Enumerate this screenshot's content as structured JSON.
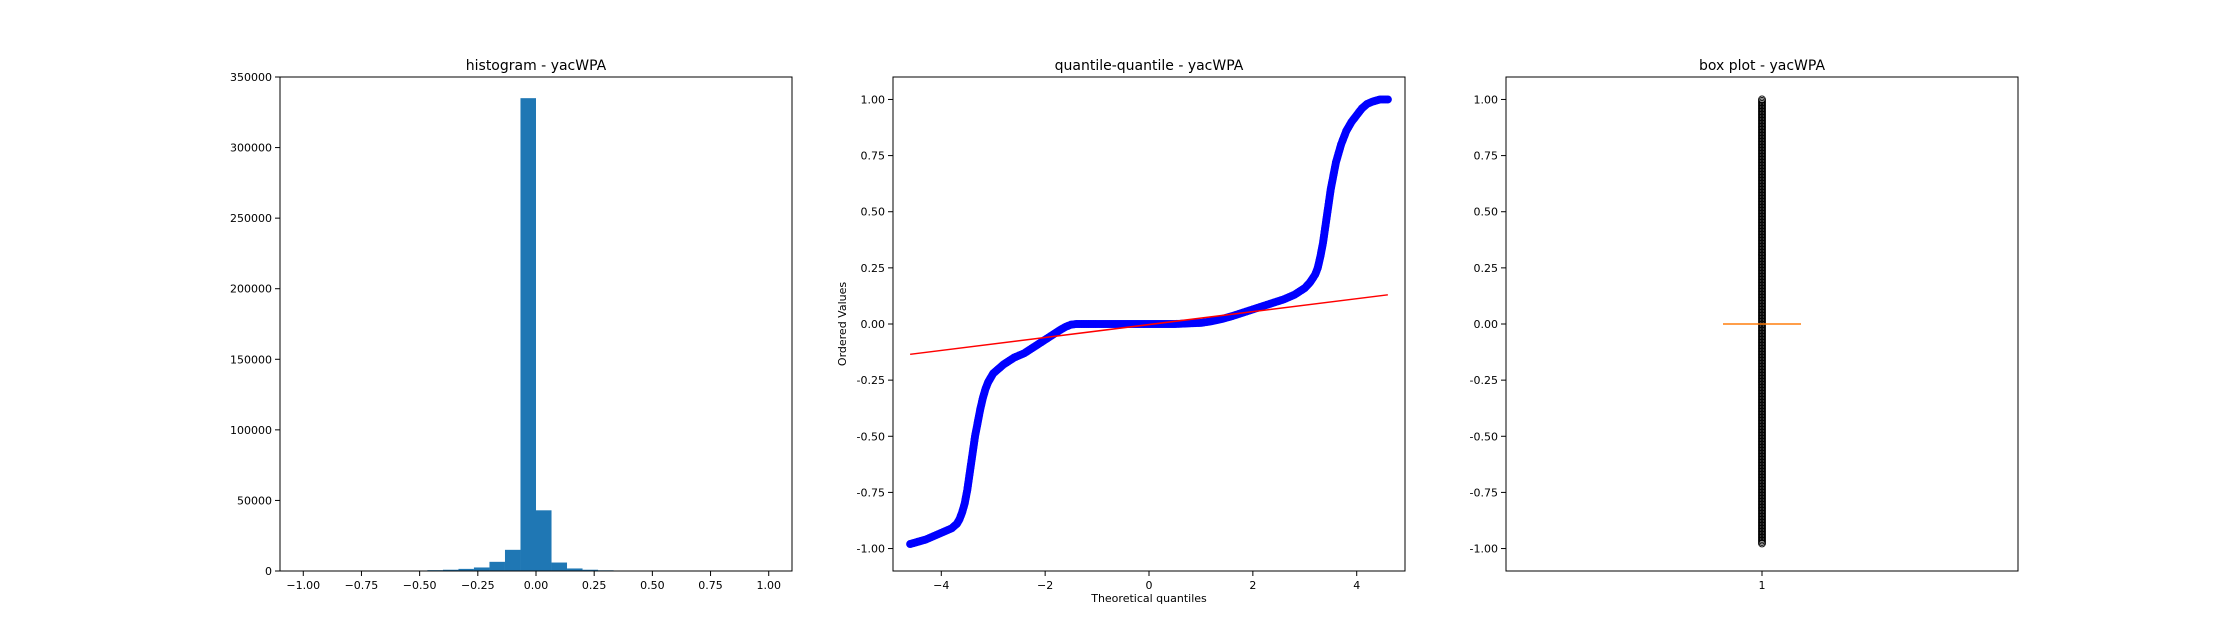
{
  "chart_data": [
    {
      "type": "bar",
      "title": "histogram - yacWPA",
      "xlabel": "",
      "ylabel": "",
      "xlim": [
        -1.1,
        1.1
      ],
      "ylim": [
        0,
        350000
      ],
      "xticks": [
        "-1.00",
        "-0.75",
        "-0.50",
        "-0.25",
        "0.00",
        "0.25",
        "0.50",
        "0.75",
        "1.00"
      ],
      "yticks": [
        "0",
        "50000",
        "100000",
        "150000",
        "200000",
        "250000",
        "300000",
        "350000"
      ],
      "bin_edges": [
        -1.0,
        -0.9333,
        -0.8667,
        -0.8,
        -0.7333,
        -0.6667,
        -0.6,
        -0.5333,
        -0.4667,
        -0.4,
        -0.3333,
        -0.2667,
        -0.2,
        -0.1333,
        -0.0667,
        0.0,
        0.0667,
        0.1333,
        0.2,
        0.2667,
        0.3333,
        0.4,
        0.4667,
        0.5333,
        0.6,
        0.6667,
        0.7333,
        0.8,
        0.8667,
        0.9333,
        1.0
      ],
      "values": [
        20,
        30,
        40,
        50,
        60,
        80,
        120,
        300,
        600,
        900,
        1500,
        2500,
        6500,
        15000,
        335000,
        43000,
        6000,
        1800,
        900,
        500,
        300,
        150,
        90,
        60,
        40,
        30,
        20,
        15,
        10,
        10
      ],
      "color": "#1f77b4"
    },
    {
      "type": "scatter",
      "title": "quantile-quantile - yacWPA",
      "xlabel": "Theoretical quantiles",
      "ylabel": "Ordered Values",
      "xlim": [
        -4.93,
        4.93
      ],
      "ylim": [
        -1.1,
        1.1
      ],
      "xticks": [
        -4,
        -2,
        0,
        2,
        4
      ],
      "yticks": [
        "-1.00",
        "-0.75",
        "-0.50",
        "-0.25",
        "0.00",
        "0.25",
        "0.50",
        "0.75",
        "1.00"
      ],
      "series": [
        {
          "type": "scatter",
          "color": "#0000ff",
          "x": [
            -4.6,
            -4.45,
            -4.3,
            -4.2,
            -4.1,
            -4.0,
            -3.9,
            -3.8,
            -3.7,
            -3.65,
            -3.6,
            -3.55,
            -3.5,
            -3.45,
            -3.4,
            -3.35,
            -3.3,
            -3.25,
            -3.2,
            -3.15,
            -3.1,
            -3.05,
            -3.0,
            -2.9,
            -2.8,
            -2.7,
            -2.6,
            -2.5,
            -2.4,
            -2.3,
            -2.2,
            -2.1,
            -2.0,
            -1.9,
            -1.8,
            -1.7,
            -1.6,
            -1.5,
            -1.4,
            -1.3,
            -1.2,
            -1.1,
            -1.0,
            -0.5,
            0.0,
            0.5,
            1.0,
            1.2,
            1.4,
            1.6,
            1.8,
            2.0,
            2.2,
            2.4,
            2.6,
            2.8,
            3.0,
            3.1,
            3.2,
            3.25,
            3.3,
            3.35,
            3.4,
            3.45,
            3.5,
            3.55,
            3.6,
            3.65,
            3.7,
            3.75,
            3.8,
            3.9,
            4.0,
            4.1,
            4.2,
            4.3,
            4.45,
            4.6
          ],
          "y": [
            -0.98,
            -0.97,
            -0.96,
            -0.95,
            -0.94,
            -0.93,
            -0.92,
            -0.91,
            -0.89,
            -0.87,
            -0.84,
            -0.8,
            -0.74,
            -0.66,
            -0.58,
            -0.5,
            -0.44,
            -0.38,
            -0.33,
            -0.29,
            -0.26,
            -0.24,
            -0.22,
            -0.2,
            -0.18,
            -0.165,
            -0.15,
            -0.14,
            -0.13,
            -0.115,
            -0.1,
            -0.085,
            -0.07,
            -0.055,
            -0.04,
            -0.025,
            -0.012,
            -0.003,
            0.0,
            0.0,
            0.0,
            0.0,
            0.0,
            0.0,
            0.0,
            0.0,
            0.005,
            0.012,
            0.022,
            0.035,
            0.05,
            0.065,
            0.08,
            0.095,
            0.11,
            0.13,
            0.16,
            0.185,
            0.22,
            0.25,
            0.3,
            0.36,
            0.44,
            0.52,
            0.6,
            0.66,
            0.72,
            0.76,
            0.8,
            0.83,
            0.86,
            0.9,
            0.93,
            0.96,
            0.98,
            0.99,
            1.0,
            1.0
          ]
        },
        {
          "type": "line",
          "color": "#ff0000",
          "x": [
            -4.6,
            4.6
          ],
          "y": [
            -0.135,
            0.13
          ]
        }
      ]
    },
    {
      "type": "box",
      "title": "box plot - yacWPA",
      "xlabel": "",
      "ylabel": "",
      "xlim": [
        0.5,
        1.5
      ],
      "ylim": [
        -1.1,
        1.1
      ],
      "xticks": [
        "1"
      ],
      "yticks": [
        "-1.00",
        "-0.75",
        "-0.50",
        "-0.25",
        "0.00",
        "0.25",
        "0.50",
        "0.75",
        "1.00"
      ],
      "position": 1,
      "median": 0.0,
      "q1": 0.0,
      "q3": 0.0,
      "whisker_low": 0.0,
      "whisker_high": 0.0,
      "outliers_min": -0.98,
      "outliers_max": 1.0,
      "median_color": "#ff7f0e"
    }
  ]
}
